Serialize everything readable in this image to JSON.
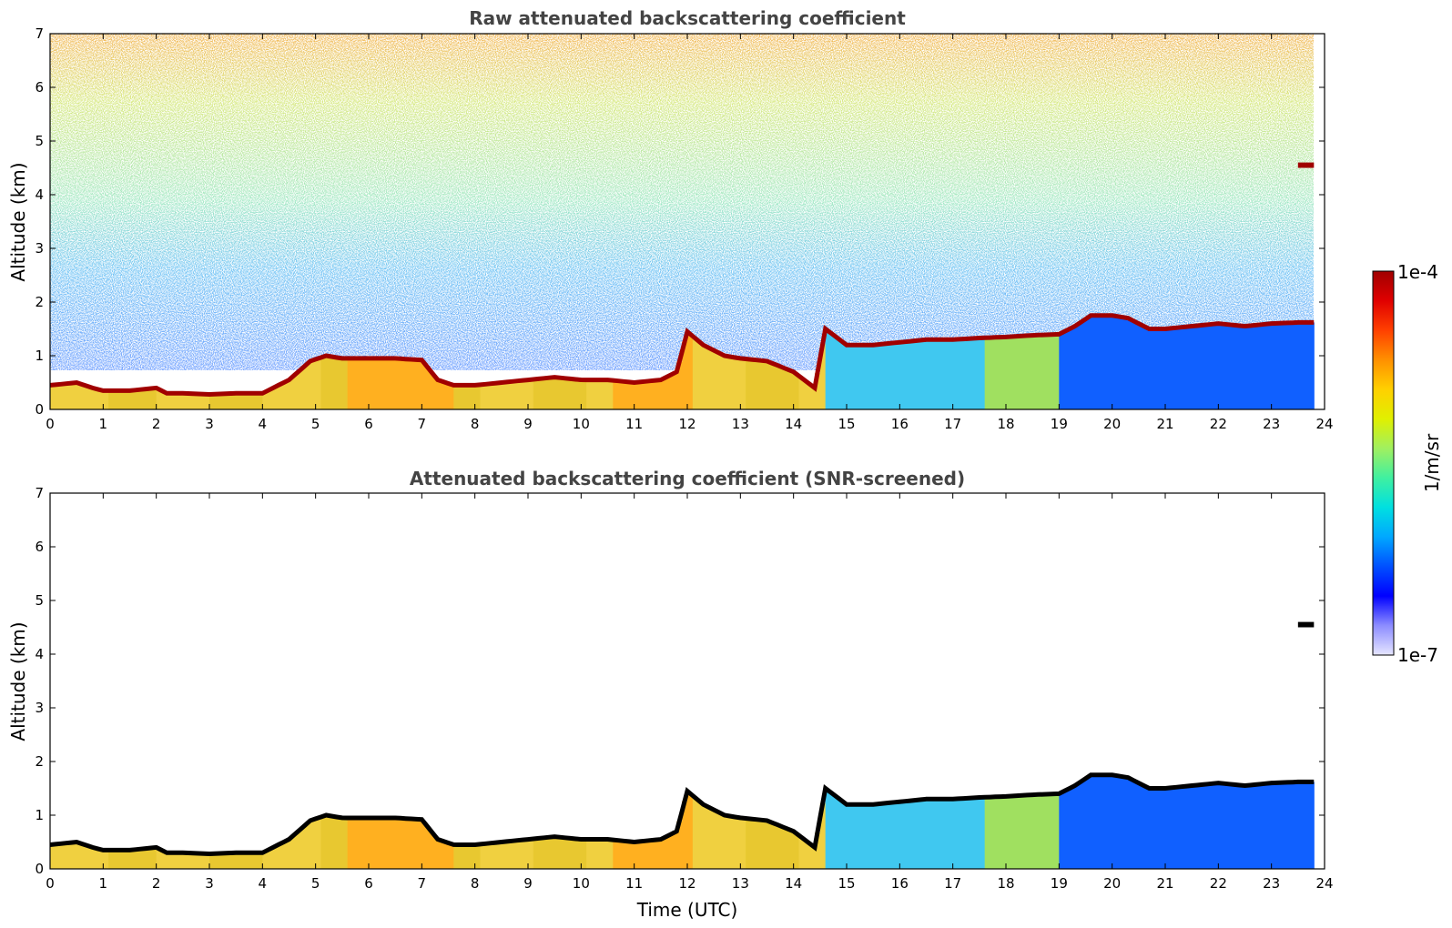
{
  "figure": {
    "colorbar": {
      "label": "1/m/sr",
      "max_label": "1e-4",
      "min_label": "1e-7",
      "scale": "log",
      "colormap": [
        "#e6e6ff",
        "#8c8cff",
        "#0000ff",
        "#0050ff",
        "#00a8ff",
        "#00e0e0",
        "#40f0a0",
        "#a0f060",
        "#e0f000",
        "#ffd000",
        "#ff9000",
        "#ff4000",
        "#e00000",
        "#a00000"
      ]
    }
  },
  "chart_data": [
    {
      "type": "heatmap",
      "title": "Raw attenuated backscattering coefficient",
      "xlabel": "",
      "ylabel": "Altitude (km)",
      "xlim": [
        0,
        24
      ],
      "ylim": [
        0,
        7
      ],
      "xticks": [
        "0",
        "1",
        "2",
        "3",
        "4",
        "5",
        "6",
        "7",
        "8",
        "9",
        "10",
        "11",
        "12",
        "13",
        "14",
        "15",
        "16",
        "17",
        "18",
        "19",
        "20",
        "21",
        "22",
        "23",
        "24"
      ],
      "yticks": [
        "0",
        "1",
        "2",
        "3",
        "4",
        "5",
        "6",
        "7"
      ],
      "grid": false,
      "data_extent_hours": [
        0,
        23.8
      ],
      "cloud_base_km": {
        "x": [
          0,
          0.5,
          0.8,
          1.0,
          1.5,
          2.0,
          2.2,
          2.5,
          3.0,
          3.5,
          4.0,
          4.5,
          4.9,
          5.2,
          5.5,
          6.0,
          6.5,
          7.0,
          7.3,
          7.6,
          8.0,
          8.5,
          9.0,
          9.5,
          10.0,
          10.5,
          11.0,
          11.5,
          11.8,
          12.0,
          12.3,
          12.7,
          13.0,
          13.5,
          14.0,
          14.4,
          14.6,
          15.0,
          15.5,
          16.0,
          16.5,
          17.0,
          17.5,
          18.0,
          18.5,
          19.0,
          19.3,
          19.6,
          20.0,
          20.3,
          20.7,
          21.0,
          21.5,
          22.0,
          22.5,
          23.0,
          23.5,
          23.8
        ],
        "y": [
          0.45,
          0.5,
          0.4,
          0.35,
          0.35,
          0.4,
          0.3,
          0.3,
          0.28,
          0.3,
          0.3,
          0.55,
          0.9,
          1.0,
          0.95,
          0.95,
          0.95,
          0.92,
          0.55,
          0.45,
          0.45,
          0.5,
          0.55,
          0.6,
          0.55,
          0.55,
          0.5,
          0.55,
          0.7,
          1.45,
          1.2,
          1.0,
          0.95,
          0.9,
          0.7,
          0.4,
          1.5,
          1.2,
          1.2,
          1.25,
          1.3,
          1.3,
          1.33,
          1.35,
          1.38,
          1.4,
          1.55,
          1.75,
          1.75,
          1.7,
          1.5,
          1.5,
          1.55,
          1.6,
          1.55,
          1.6,
          1.62,
          1.62
        ]
      },
      "elevated_layer": {
        "x": [
          23.5,
          23.8
        ],
        "y": [
          4.5,
          4.6
        ]
      },
      "upper_noise": "increasing with altitude, strongest near 6-7 km around 8-12 UTC"
    },
    {
      "type": "heatmap",
      "title": "Attenuated backscattering coefficient (SNR-screened)",
      "xlabel": "Time (UTC)",
      "ylabel": "Altitude (km)",
      "xlim": [
        0,
        24
      ],
      "ylim": [
        0,
        7
      ],
      "xticks": [
        "0",
        "1",
        "2",
        "3",
        "4",
        "5",
        "6",
        "7",
        "8",
        "9",
        "10",
        "11",
        "12",
        "13",
        "14",
        "15",
        "16",
        "17",
        "18",
        "19",
        "20",
        "21",
        "22",
        "23",
        "24"
      ],
      "yticks": [
        "0",
        "1",
        "2",
        "3",
        "4",
        "5",
        "6",
        "7"
      ],
      "grid": false,
      "data_extent_hours": [
        0,
        23.8
      ],
      "screened": true,
      "cloud_layer_color": "#000000",
      "elevated_layer": {
        "x": [
          23.5,
          23.8
        ],
        "y": [
          4.5,
          4.6
        ]
      }
    }
  ]
}
